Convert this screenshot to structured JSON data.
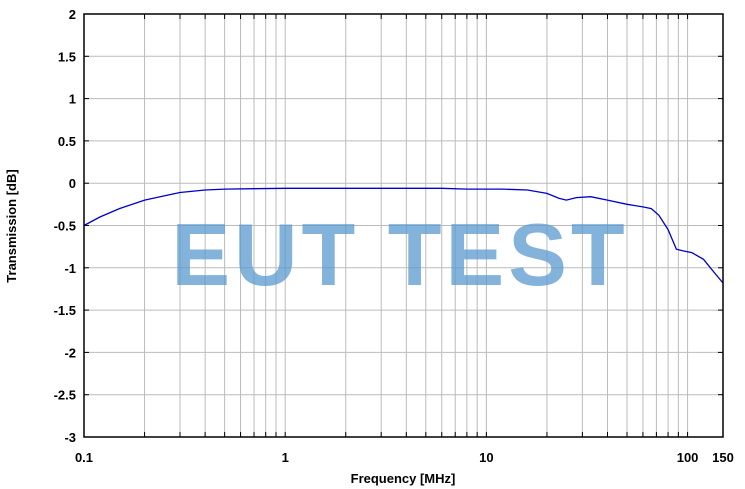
{
  "chart_data": {
    "type": "line",
    "title": "",
    "xlabel": "Frequency [MHz]",
    "ylabel": "Transmission [dB]",
    "xscale": "log",
    "xlim": [
      0.1,
      150
    ],
    "ylim": [
      -3,
      2
    ],
    "grid": true,
    "xticks": [
      {
        "v": 0.1,
        "label": "0.1"
      },
      {
        "v": 1,
        "label": "1"
      },
      {
        "v": 10,
        "label": "10"
      },
      {
        "v": 100,
        "label": "100"
      },
      {
        "v": 150,
        "label": "150"
      }
    ],
    "yticks": [
      {
        "v": 2,
        "label": "2"
      },
      {
        "v": 1.5,
        "label": "1.5"
      },
      {
        "v": 1,
        "label": "1"
      },
      {
        "v": 0.5,
        "label": "0.5"
      },
      {
        "v": 0,
        "label": "0"
      },
      {
        "v": -0.5,
        "label": "-0.5"
      },
      {
        "v": -1,
        "label": "-1"
      },
      {
        "v": -1.5,
        "label": "-1.5"
      },
      {
        "v": -2,
        "label": "-2"
      },
      {
        "v": -2.5,
        "label": "-2.5"
      },
      {
        "v": -3,
        "label": "-3"
      }
    ],
    "line_color": "#0000cc",
    "series": [
      {
        "x": [
          0.1,
          0.12,
          0.15,
          0.2,
          0.25,
          0.3,
          0.4,
          0.5,
          1,
          3,
          6,
          8,
          12,
          16,
          20,
          23,
          25,
          28,
          33,
          40,
          50,
          60,
          66,
          72,
          80,
          88,
          95,
          105,
          120,
          135,
          150
        ],
        "y": [
          -0.5,
          -0.4,
          -0.3,
          -0.2,
          -0.15,
          -0.11,
          -0.08,
          -0.07,
          -0.06,
          -0.06,
          -0.06,
          -0.07,
          -0.07,
          -0.08,
          -0.12,
          -0.18,
          -0.2,
          -0.17,
          -0.16,
          -0.2,
          -0.25,
          -0.28,
          -0.3,
          -0.38,
          -0.55,
          -0.78,
          -0.8,
          -0.82,
          -0.9,
          -1.05,
          -1.18
        ]
      }
    ]
  },
  "watermark": "EUT TEST"
}
